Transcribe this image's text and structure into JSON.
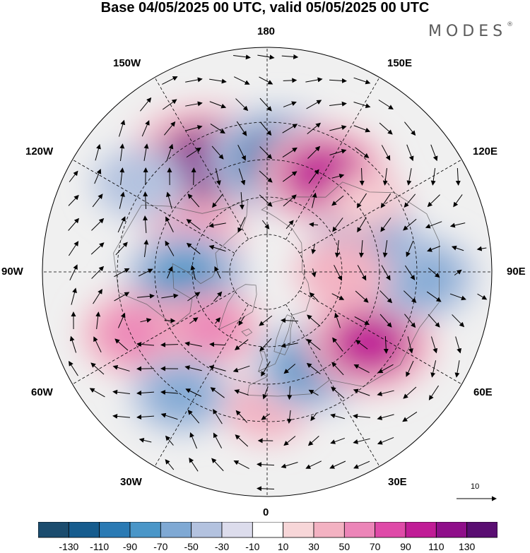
{
  "title": "Base 04/05/2025 00 UTC, valid 05/05/2025 00 UTC",
  "brand": "MODES",
  "brand_mark": "®",
  "longitude_labels": {
    "l180": "180",
    "l150w": "150W",
    "l150e": "150E",
    "l120w": "120W",
    "l120e": "120E",
    "l90w": "90W",
    "l90e": "90E",
    "l60w": "60W",
    "l60e": "60E",
    "l30w": "30W",
    "l30e": "30E",
    "l0": "0"
  },
  "reference_vector": {
    "label": "10"
  },
  "colorbar": {
    "colors": [
      "#1b4c6e",
      "#165c8e",
      "#2a7ab4",
      "#4a96c8",
      "#7fa9d4",
      "#b3c2df",
      "#dcdcec",
      "#ffffff",
      "#f7d6d8",
      "#f3b2c2",
      "#ec85b8",
      "#df4aa8",
      "#c01c96",
      "#8f0f8a",
      "#5a0e72"
    ],
    "ticks": [
      "-130",
      "-110",
      "-90",
      "-70",
      "-50",
      "-30",
      "-10",
      "10",
      "30",
      "50",
      "70",
      "90",
      "110",
      "130"
    ]
  },
  "anomaly_centers": [
    {
      "lon": -150,
      "lat": 40,
      "value": 125
    },
    {
      "lon": 175,
      "lat": 45,
      "value": -105
    },
    {
      "lon": 150,
      "lat": 45,
      "value": 95
    },
    {
      "lon": -125,
      "lat": 28,
      "value": -45
    },
    {
      "lon": -110,
      "lat": 58,
      "value": 55
    },
    {
      "lon": -85,
      "lat": 57,
      "value": -85
    },
    {
      "lon": -65,
      "lat": 32,
      "value": 65
    },
    {
      "lon": -45,
      "lat": 58,
      "value": 55
    },
    {
      "lon": -35,
      "lat": 30,
      "value": -55
    },
    {
      "lon": 0,
      "lat": 35,
      "value": 35
    },
    {
      "lon": 25,
      "lat": 48,
      "value": -75
    },
    {
      "lon": 55,
      "lat": 40,
      "value": 95
    },
    {
      "lon": 88,
      "lat": 28,
      "value": -65
    },
    {
      "lon": 105,
      "lat": 48,
      "value": -70
    },
    {
      "lon": 125,
      "lat": 42,
      "value": 25
    },
    {
      "lon": 90,
      "lat": 60,
      "value": 45
    }
  ]
}
